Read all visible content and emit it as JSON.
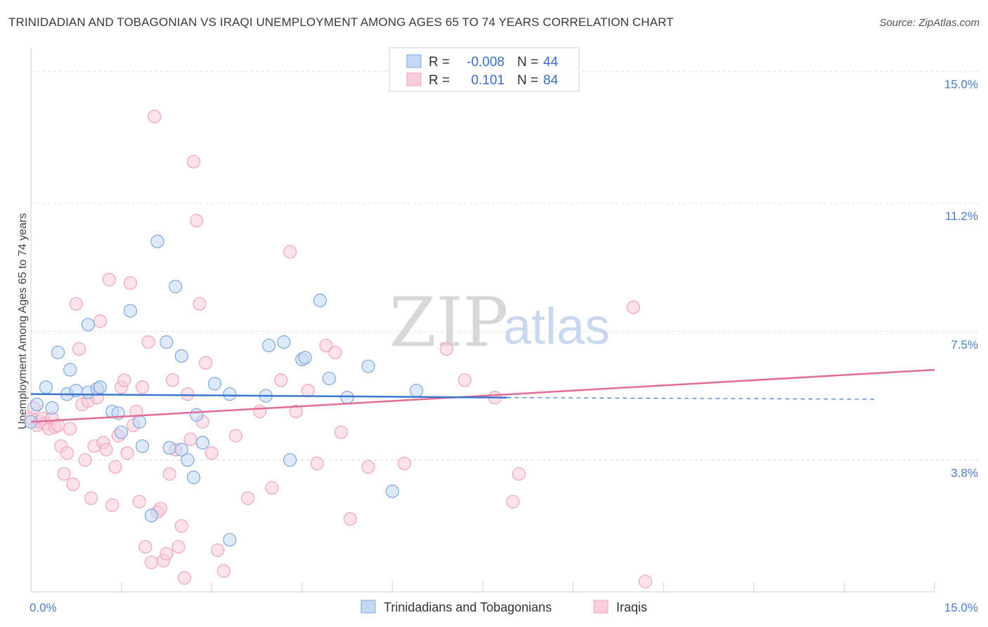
{
  "title": "TRINIDADIAN AND TOBAGONIAN VS IRAQI UNEMPLOYMENT AMONG AGES 65 TO 74 YEARS CORRELATION CHART",
  "source": "Source: ZipAtlas.com",
  "watermark": {
    "zip": "ZIP",
    "atlas": "atlas"
  },
  "colors": {
    "blue": "#7ba7e0",
    "blue_line": "#3a77cf",
    "pink": "#f0a3bd",
    "pink_line": "#e36b98",
    "axis_label": "#4a7cc4"
  },
  "legend": {
    "rows": [
      {
        "r_label": "R =",
        "r_value": "-0.008",
        "n_label": "N =",
        "n_value": "44"
      },
      {
        "r_label": "R =",
        "r_value": "0.101",
        "n_label": "N =",
        "n_value": "84"
      }
    ]
  },
  "bottom_legend": {
    "series1": "Trinidadians and Tobagonians",
    "series2": "Iraqis"
  },
  "chart_data": {
    "type": "scatter",
    "title": "TRINIDADIAN AND TOBAGONIAN VS IRAQI UNEMPLOYMENT AMONG AGES 65 TO 74 YEARS CORRELATION CHART",
    "xlabel": "",
    "ylabel": "Unemployment Among Ages 65 to 74 years",
    "xlim": [
      0,
      15
    ],
    "ylim": [
      0,
      15.6
    ],
    "x_tick_labels": [
      "0.0%",
      "15.0%"
    ],
    "y_ticks": [
      3.8,
      7.5,
      11.2,
      15.0
    ],
    "y_tick_labels": [
      "3.8%",
      "7.5%",
      "11.2%",
      "15.0%"
    ],
    "series": [
      {
        "name": "Trinidadians and Tobagonians",
        "color": "#7ba7e0",
        "trend": {
          "x": [
            0,
            7.9
          ],
          "y": [
            5.7,
            5.6
          ],
          "dashed_to_x": 14.0,
          "dashed_y": 5.55
        },
        "points": [
          [
            0.0,
            4.9
          ],
          [
            0.1,
            5.4
          ],
          [
            0.25,
            5.9
          ],
          [
            0.35,
            5.3
          ],
          [
            0.45,
            6.9
          ],
          [
            0.6,
            5.7
          ],
          [
            0.65,
            6.4
          ],
          [
            0.75,
            5.8
          ],
          [
            0.95,
            5.75
          ],
          [
            0.95,
            7.7
          ],
          [
            1.1,
            5.85
          ],
          [
            1.15,
            5.9
          ],
          [
            1.35,
            5.2
          ],
          [
            1.45,
            5.15
          ],
          [
            1.5,
            4.6
          ],
          [
            1.65,
            8.1
          ],
          [
            1.8,
            4.9
          ],
          [
            1.85,
            4.2
          ],
          [
            2.0,
            2.2
          ],
          [
            2.1,
            10.1
          ],
          [
            2.25,
            7.2
          ],
          [
            2.3,
            4.15
          ],
          [
            2.4,
            8.8
          ],
          [
            2.5,
            6.8
          ],
          [
            2.5,
            4.1
          ],
          [
            2.6,
            3.8
          ],
          [
            2.7,
            3.3
          ],
          [
            2.75,
            5.1
          ],
          [
            2.85,
            4.3
          ],
          [
            3.05,
            6.0
          ],
          [
            3.3,
            5.7
          ],
          [
            3.3,
            1.5
          ],
          [
            3.9,
            5.65
          ],
          [
            3.95,
            7.1
          ],
          [
            4.2,
            7.2
          ],
          [
            4.3,
            3.8
          ],
          [
            4.5,
            6.7
          ],
          [
            4.55,
            6.75
          ],
          [
            4.8,
            8.4
          ],
          [
            4.95,
            6.15
          ],
          [
            5.25,
            5.6
          ],
          [
            5.6,
            6.5
          ],
          [
            6.0,
            2.9
          ],
          [
            6.4,
            5.8
          ]
        ]
      },
      {
        "name": "Iraqis",
        "color": "#f0a3bd",
        "trend": {
          "x": [
            0,
            15
          ],
          "y": [
            4.9,
            6.4
          ]
        },
        "points": [
          [
            0.0,
            5.0
          ],
          [
            0.05,
            5.3
          ],
          [
            0.1,
            4.8
          ],
          [
            0.15,
            4.9
          ],
          [
            0.2,
            5.0
          ],
          [
            0.25,
            4.85
          ],
          [
            0.3,
            4.7
          ],
          [
            0.35,
            5.0
          ],
          [
            0.4,
            4.75
          ],
          [
            0.45,
            4.8
          ],
          [
            0.5,
            4.2
          ],
          [
            0.55,
            3.4
          ],
          [
            0.6,
            4.0
          ],
          [
            0.65,
            4.7
          ],
          [
            0.7,
            3.1
          ],
          [
            0.75,
            8.3
          ],
          [
            0.8,
            7.0
          ],
          [
            0.85,
            5.4
          ],
          [
            0.9,
            3.8
          ],
          [
            0.95,
            5.5
          ],
          [
            1.0,
            2.7
          ],
          [
            1.05,
            4.2
          ],
          [
            1.1,
            5.6
          ],
          [
            1.15,
            7.8
          ],
          [
            1.2,
            4.3
          ],
          [
            1.25,
            4.1
          ],
          [
            1.3,
            9.0
          ],
          [
            1.35,
            2.5
          ],
          [
            1.4,
            3.6
          ],
          [
            1.45,
            4.5
          ],
          [
            1.5,
            5.9
          ],
          [
            1.55,
            6.1
          ],
          [
            1.6,
            4.0
          ],
          [
            1.65,
            8.9
          ],
          [
            1.7,
            4.8
          ],
          [
            1.75,
            5.2
          ],
          [
            1.8,
            2.6
          ],
          [
            1.85,
            5.9
          ],
          [
            1.9,
            1.3
          ],
          [
            1.95,
            7.2
          ],
          [
            2.0,
            0.85
          ],
          [
            2.05,
            13.7
          ],
          [
            2.1,
            2.3
          ],
          [
            2.15,
            2.4
          ],
          [
            2.2,
            0.9
          ],
          [
            2.25,
            1.1
          ],
          [
            2.3,
            3.4
          ],
          [
            2.35,
            6.1
          ],
          [
            2.4,
            4.1
          ],
          [
            2.45,
            1.3
          ],
          [
            2.5,
            1.9
          ],
          [
            2.55,
            0.4
          ],
          [
            2.6,
            5.7
          ],
          [
            2.65,
            4.4
          ],
          [
            2.7,
            12.4
          ],
          [
            2.75,
            10.7
          ],
          [
            2.8,
            8.3
          ],
          [
            2.85,
            4.9
          ],
          [
            2.9,
            6.6
          ],
          [
            3.0,
            4.0
          ],
          [
            3.1,
            1.2
          ],
          [
            3.2,
            0.6
          ],
          [
            3.4,
            4.5
          ],
          [
            3.6,
            2.7
          ],
          [
            3.8,
            5.2
          ],
          [
            4.0,
            3.0
          ],
          [
            4.15,
            6.1
          ],
          [
            4.3,
            9.8
          ],
          [
            4.4,
            5.2
          ],
          [
            4.6,
            5.8
          ],
          [
            4.75,
            3.7
          ],
          [
            4.9,
            7.1
          ],
          [
            5.05,
            6.9
          ],
          [
            5.15,
            4.6
          ],
          [
            5.3,
            2.1
          ],
          [
            5.6,
            3.6
          ],
          [
            6.2,
            3.7
          ],
          [
            6.9,
            7.0
          ],
          [
            7.2,
            6.1
          ],
          [
            7.7,
            5.6
          ],
          [
            8.0,
            2.6
          ],
          [
            8.1,
            3.4
          ],
          [
            10.0,
            8.2
          ],
          [
            10.2,
            0.3
          ]
        ]
      }
    ]
  }
}
